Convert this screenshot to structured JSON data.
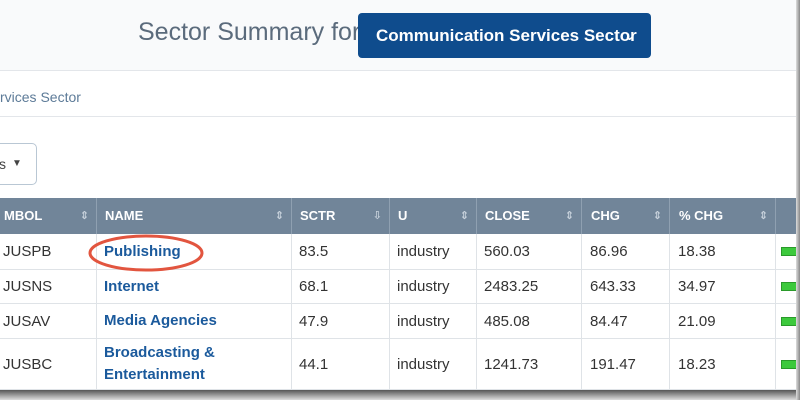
{
  "header": {
    "title": "Sector Summary for",
    "sector_button": "Communication Services Sector"
  },
  "breadcrumb": "rvices Sector",
  "dropdown": "s",
  "table": {
    "columns": [
      "MBOL",
      "NAME",
      "SCTR",
      "U",
      "CLOSE",
      "CHG",
      "% CHG"
    ],
    "rows": [
      [
        "JUSPB",
        "Publishing",
        "83.5",
        "industry",
        "560.03",
        "86.96",
        "18.38"
      ],
      [
        "JUSNS",
        "Internet",
        "68.1",
        "industry",
        "2483.25",
        "643.33",
        "34.97"
      ],
      [
        "JUSAV",
        "Media Agencies",
        "47.9",
        "industry",
        "485.08",
        "84.47",
        "21.09"
      ],
      [
        "JUSBC",
        "Broadcasting & Entertainment",
        "44.1",
        "industry",
        "1241.73",
        "191.47",
        "18.23"
      ]
    ]
  }
}
